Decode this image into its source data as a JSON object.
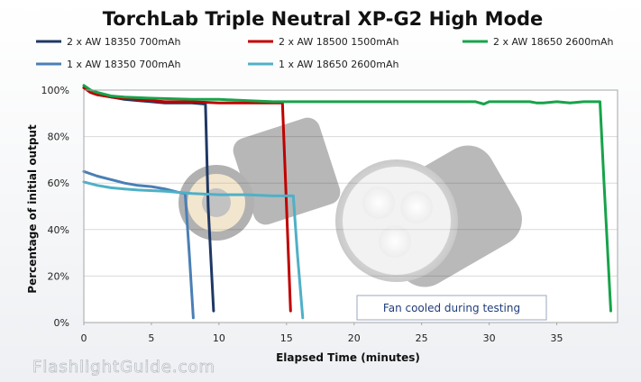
{
  "watermark": "FlashlightGuide.com",
  "note": "Fan cooled during testing",
  "colors": {
    "grid": "#d9d9d9",
    "plot_border": "#a6a6a6",
    "note_border": "#9aa7c0",
    "photo_body": "#2a2a2a"
  },
  "chart_data": {
    "type": "line",
    "title": "TorchLab Triple Neutral XP-G2 High Mode",
    "xlabel": "Elapsed Time (minutes)",
    "ylabel": "Percentage of initial output",
    "xlim": [
      0,
      39.5
    ],
    "ylim": [
      0,
      100
    ],
    "x_ticks": [
      0,
      5,
      10,
      15,
      20,
      25,
      30,
      35
    ],
    "y_ticks": [
      {
        "value": 0,
        "label": "0%"
      },
      {
        "value": 20,
        "label": "20%"
      },
      {
        "value": 40,
        "label": "40%"
      },
      {
        "value": 60,
        "label": "60%"
      },
      {
        "value": 80,
        "label": "80%"
      },
      {
        "value": 100,
        "label": "100%"
      }
    ],
    "grid": "horizontal",
    "legend_position": "top",
    "series": [
      {
        "name": "2 x AW 18350 700mAh",
        "color": "#1f3864",
        "x": [
          0,
          0.5,
          1,
          2,
          3,
          4,
          5,
          6,
          7,
          8,
          9,
          9.2,
          9.6
        ],
        "y": [
          101,
          99,
          98,
          97,
          96,
          95.5,
          95,
          94.5,
          94.5,
          94.5,
          94,
          50,
          5
        ]
      },
      {
        "name": "2 x AW 18500 1500mAh",
        "color": "#c00000",
        "x": [
          0,
          0.5,
          1,
          2,
          3,
          4,
          5,
          6,
          8,
          10,
          12,
          14,
          14.7,
          15,
          15.3
        ],
        "y": [
          101,
          99,
          98,
          97,
          96.5,
          96,
          95.5,
          95,
          95,
          94.5,
          94.5,
          94.5,
          94.5,
          50,
          5
        ]
      },
      {
        "name": "2 x AW 18650 2600mAh",
        "color": "#17a34a",
        "x": [
          0,
          0.5,
          1,
          2,
          3,
          5,
          8,
          10,
          12,
          14,
          20,
          25,
          29,
          29.6,
          30,
          31,
          33,
          33.5,
          34,
          35,
          36,
          37,
          38.2,
          38.5,
          39
        ],
        "y": [
          102,
          100,
          99,
          97.5,
          97,
          96.5,
          96,
          96,
          95.5,
          95,
          95,
          95,
          95,
          94,
          95,
          95,
          95,
          94.5,
          94.5,
          95,
          94.5,
          95,
          95,
          60,
          5
        ]
      },
      {
        "name": "1 x AW 18350 700mAh",
        "color": "#4a7fb5",
        "x": [
          0,
          1,
          2,
          3,
          4,
          5,
          6,
          7,
          7.5,
          7.8,
          8.1
        ],
        "y": [
          65,
          63,
          61.5,
          60,
          59,
          58.5,
          57.5,
          56,
          55.5,
          30,
          2
        ]
      },
      {
        "name": "1 x AW 18650 2600mAh",
        "color": "#4fb0c6",
        "x": [
          0,
          1,
          2,
          3,
          4,
          6,
          8,
          10,
          12,
          14,
          15.5,
          15.8,
          16.2
        ],
        "y": [
          60.5,
          59,
          58,
          57.5,
          57,
          56.5,
          55.5,
          55,
          55,
          54.5,
          54.5,
          30,
          2
        ]
      }
    ]
  }
}
